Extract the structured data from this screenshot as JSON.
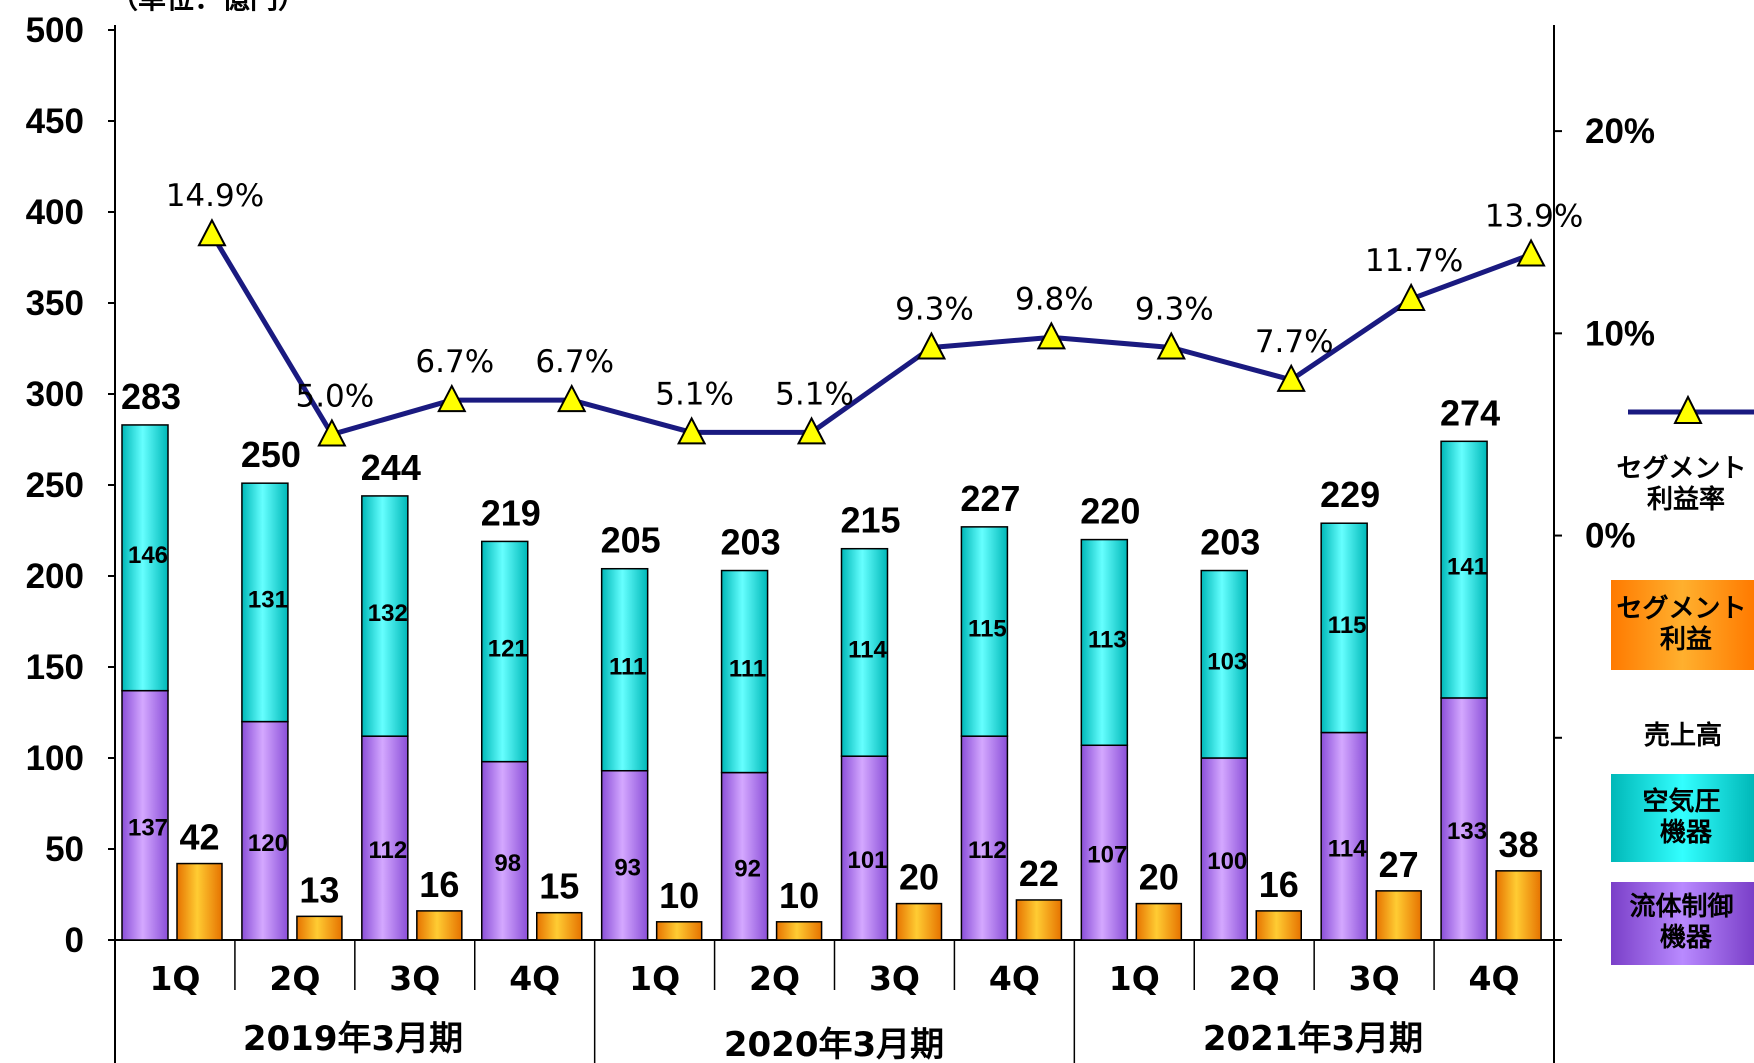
{
  "chart_data": {
    "type": "bar",
    "unit_label": "（単位：億円）",
    "periods": [
      "2019年3月期",
      "2020年3月期",
      "2021年3月期"
    ],
    "quarters": [
      "1Q",
      "2Q",
      "3Q",
      "4Q",
      "1Q",
      "2Q",
      "3Q",
      "4Q",
      "1Q",
      "2Q",
      "3Q",
      "4Q"
    ],
    "ylim": [
      0,
      500
    ],
    "yticks": [
      0,
      50,
      100,
      150,
      200,
      250,
      300,
      350,
      400,
      450,
      500
    ],
    "ylim_right": [
      -20,
      25
    ],
    "yticks_right": [
      "0%",
      "10%",
      "20%"
    ],
    "grid": false,
    "legend_position": "right",
    "series": [
      {
        "name": "流体制御機器",
        "role": "sales_stack_bottom",
        "color": "#bb88ff",
        "values": [
          137,
          120,
          112,
          98,
          93,
          92,
          101,
          112,
          107,
          100,
          114,
          133
        ]
      },
      {
        "name": "空気圧機器",
        "role": "sales_stack_top",
        "color": "#00e5e5",
        "values": [
          146,
          131,
          132,
          121,
          111,
          111,
          114,
          115,
          113,
          103,
          115,
          141
        ]
      },
      {
        "name": "セグメント利益",
        "role": "profit_bar",
        "color": "#ff9900",
        "values": [
          42,
          13,
          16,
          15,
          10,
          10,
          20,
          22,
          20,
          16,
          27,
          38
        ]
      },
      {
        "name": "セグメント利益率",
        "role": "margin_line",
        "color": "#1a1a80",
        "values": [
          14.9,
          5.0,
          6.7,
          6.7,
          5.1,
          5.1,
          9.3,
          9.8,
          9.3,
          7.7,
          11.7,
          13.9
        ],
        "labels": [
          "14.9%",
          "5.0%",
          "6.7%",
          "6.7%",
          "5.1%",
          "5.1%",
          "9.3%",
          "9.8%",
          "9.3%",
          "7.7%",
          "11.7%",
          "13.9%"
        ]
      }
    ],
    "totals": [
      283,
      250,
      244,
      219,
      205,
      203,
      215,
      227,
      220,
      203,
      229,
      274
    ],
    "legend": {
      "margin": "セグメント利益率",
      "profit": "セグメント利益",
      "sales_header": "売上高",
      "pneumatic": "空気圧機器",
      "fluid": "流体制御機器"
    }
  }
}
